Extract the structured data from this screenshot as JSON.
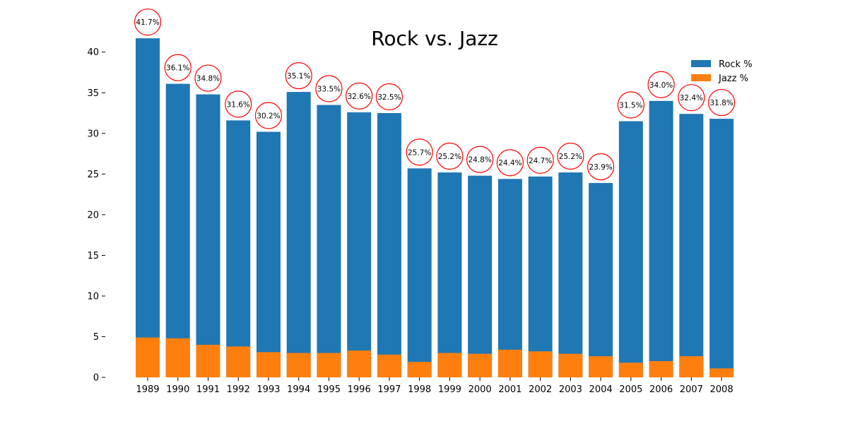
{
  "chart_data": {
    "type": "bar",
    "stacking": "overlay",
    "title": "Rock vs. Jazz",
    "xlabel": "",
    "ylabel": "",
    "categories": [
      "1989",
      "1990",
      "1991",
      "1992",
      "1993",
      "1994",
      "1995",
      "1996",
      "1997",
      "1998",
      "1999",
      "2000",
      "2001",
      "2002",
      "2003",
      "2004",
      "2005",
      "2006",
      "2007",
      "2008"
    ],
    "series": [
      {
        "name": "Rock %",
        "color": "#1f77b4",
        "values": [
          41.7,
          36.1,
          34.8,
          31.6,
          30.2,
          35.1,
          33.5,
          32.6,
          32.5,
          25.7,
          25.2,
          24.8,
          24.4,
          24.7,
          25.2,
          23.9,
          31.5,
          34.0,
          32.4,
          31.8
        ]
      },
      {
        "name": "Jazz %",
        "color": "#ff7f0e",
        "values": [
          4.9,
          4.8,
          4.0,
          3.8,
          3.1,
          3.0,
          3.0,
          3.3,
          2.8,
          1.9,
          3.0,
          2.9,
          3.4,
          3.2,
          2.9,
          2.6,
          1.8,
          2.0,
          2.6,
          1.1
        ]
      }
    ],
    "annotations": [
      "41.7%",
      "36.1%",
      "34.8%",
      "31.6%",
      "30.2%",
      "35.1%",
      "33.5%",
      "32.6%",
      "32.5%",
      "25.7%",
      "25.2%",
      "24.8%",
      "24.4%",
      "24.7%",
      "25.2%",
      "23.9%",
      "31.5%",
      "34.0%",
      "32.4%",
      "31.8%"
    ],
    "annotation_style": "red-circle",
    "annotation_color": "#ff0000",
    "yticks": [
      0,
      5,
      10,
      15,
      20,
      25,
      30,
      35,
      40
    ],
    "ylim": [
      0,
      43.8
    ],
    "grid": false,
    "legend_position": "top-right"
  }
}
